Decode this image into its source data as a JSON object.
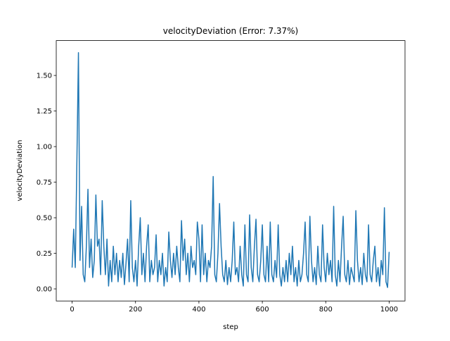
{
  "chart_data": {
    "type": "line",
    "title": "velocityDeviation (Error: 7.37%)",
    "x_label": "step",
    "y_label": "velocityDeviation",
    "color": "#1f77b4",
    "xlim": [
      -50,
      1050
    ],
    "ylim": [
      -0.085,
      1.745
    ],
    "xticks": [
      0,
      200,
      400,
      600,
      800,
      1000
    ],
    "yticks": [
      {
        "value": 0,
        "label": "0.00"
      },
      {
        "value": 0.25,
        "label": "0.25"
      },
      {
        "value": 0.5,
        "label": "0.50"
      },
      {
        "value": 0.75,
        "label": "0.75"
      },
      {
        "value": 1,
        "label": "1.00"
      },
      {
        "value": 1.25,
        "label": "1.25"
      },
      {
        "value": 1.5,
        "label": "1.50"
      }
    ],
    "x": [
      0,
      5,
      10,
      15,
      20,
      25,
      30,
      35,
      40,
      45,
      50,
      55,
      60,
      65,
      70,
      75,
      80,
      85,
      90,
      95,
      100,
      105,
      110,
      115,
      120,
      125,
      130,
      135,
      140,
      145,
      150,
      155,
      160,
      165,
      170,
      175,
      180,
      185,
      190,
      195,
      200,
      205,
      210,
      215,
      220,
      225,
      230,
      235,
      240,
      245,
      250,
      255,
      260,
      265,
      270,
      275,
      280,
      285,
      290,
      295,
      300,
      305,
      310,
      315,
      320,
      325,
      330,
      335,
      340,
      345,
      350,
      355,
      360,
      365,
      370,
      375,
      380,
      385,
      390,
      395,
      400,
      405,
      410,
      415,
      420,
      425,
      430,
      435,
      440,
      445,
      450,
      455,
      460,
      465,
      470,
      475,
      480,
      485,
      490,
      495,
      500,
      505,
      510,
      515,
      520,
      525,
      530,
      535,
      540,
      545,
      550,
      555,
      560,
      565,
      570,
      575,
      580,
      585,
      590,
      595,
      600,
      605,
      610,
      615,
      620,
      625,
      630,
      635,
      640,
      645,
      650,
      655,
      660,
      665,
      670,
      675,
      680,
      685,
      690,
      695,
      700,
      705,
      710,
      715,
      720,
      725,
      730,
      735,
      740,
      745,
      750,
      755,
      760,
      765,
      770,
      775,
      780,
      785,
      790,
      795,
      800,
      805,
      810,
      815,
      820,
      825,
      830,
      835,
      840,
      845,
      850,
      855,
      860,
      865,
      870,
      875,
      880,
      885,
      890,
      895,
      900,
      905,
      910,
      915,
      920,
      925,
      930,
      935,
      940,
      945,
      950,
      955,
      960,
      965,
      970,
      975,
      980,
      985,
      990,
      995,
      1000
    ],
    "values": [
      0.15,
      0.42,
      0.15,
      0.88,
      1.66,
      0.2,
      0.58,
      0.1,
      0.05,
      0.3,
      0.7,
      0.15,
      0.35,
      0.08,
      0.2,
      0.66,
      0.3,
      0.35,
      0.1,
      0.62,
      0.3,
      0.1,
      0.35,
      0.02,
      0.2,
      0.05,
      0.3,
      0.1,
      0.25,
      0.05,
      0.2,
      0.08,
      0.25,
      0.03,
      0.18,
      0.35,
      0.05,
      0.62,
      0.15,
      0.05,
      0.2,
      0.02,
      0.3,
      0.5,
      0.1,
      0.25,
      0.05,
      0.3,
      0.45,
      0.05,
      0.2,
      0.1,
      0.15,
      0.38,
      0.05,
      0.2,
      0.1,
      0.25,
      0.02,
      0.15,
      0.05,
      0.4,
      0.2,
      0.08,
      0.25,
      0.1,
      0.3,
      0.15,
      0.05,
      0.48,
      0.2,
      0.35,
      0.1,
      0.25,
      0.05,
      0.3,
      0.15,
      0.2,
      0.1,
      0.47,
      0.35,
      0.05,
      0.45,
      0.1,
      0.25,
      0.05,
      0.2,
      0.15,
      0.3,
      0.79,
      0.1,
      0.05,
      0.25,
      0.6,
      0.3,
      0.1,
      0.05,
      0.2,
      0.03,
      0.15,
      0.05,
      0.2,
      0.47,
      0.1,
      0.15,
      0.05,
      0.3,
      0.1,
      0.02,
      0.45,
      0.1,
      0.05,
      0.52,
      0.15,
      0.05,
      0.3,
      0.49,
      0.1,
      0.05,
      0.2,
      0.45,
      0.1,
      0.05,
      0.3,
      0.05,
      0.47,
      0.1,
      0.05,
      0.2,
      0.08,
      0.45,
      0.1,
      0.02,
      0.15,
      0.05,
      0.2,
      0.05,
      0.25,
      0.1,
      0.3,
      0.05,
      0.15,
      0.02,
      0.2,
      0.05,
      0.1,
      0.25,
      0.47,
      0.1,
      0.05,
      0.51,
      0.2,
      0.05,
      0.15,
      0.03,
      0.3,
      0.1,
      0.05,
      0.45,
      0.15,
      0.05,
      0.25,
      0.1,
      0.2,
      0.05,
      0.58,
      0.1,
      0.02,
      0.2,
      0.05,
      0.3,
      0.51,
      0.1,
      0.05,
      0.2,
      0.03,
      0.15,
      0.1,
      0.05,
      0.55,
      0.2,
      0.05,
      0.15,
      0.03,
      0.25,
      0.1,
      0.05,
      0.45,
      0.1,
      0.05,
      0.2,
      0.3,
      0.05,
      0.15,
      0.02,
      0.2,
      0.1,
      0.57,
      0.05,
      0.01,
      0.26
    ]
  }
}
